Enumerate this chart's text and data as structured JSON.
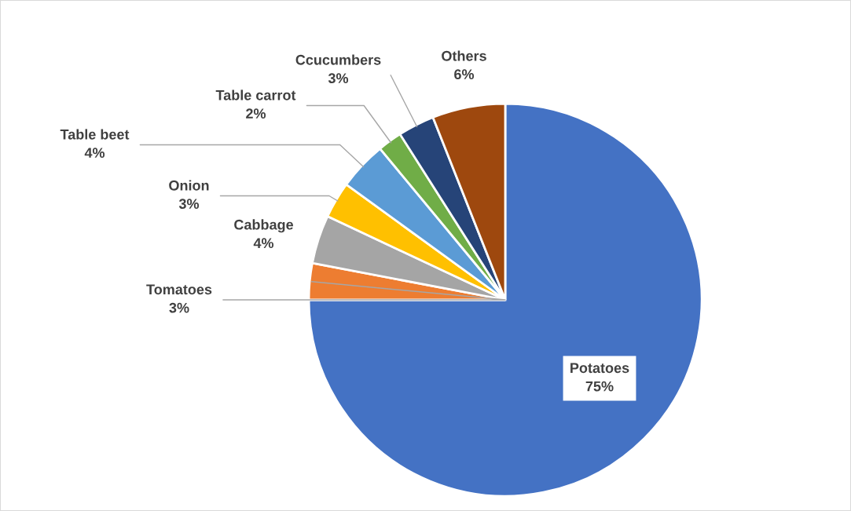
{
  "chart_data": {
    "type": "pie",
    "categories": [
      "Potatoes",
      "Tomatoes",
      "Cabbage",
      "Onion",
      "Table beet",
      "Table carrot",
      "Ccucumbers",
      "Others"
    ],
    "values": [
      75,
      3,
      4,
      3,
      4,
      2,
      3,
      6
    ],
    "colors": [
      "#4472c4",
      "#ed7d31",
      "#a5a5a5",
      "#ffc000",
      "#5b9bd5",
      "#70ad47",
      "#264478",
      "#9e480e"
    ],
    "value_labels": [
      "75%",
      "3%",
      "4%",
      "3%",
      "4%",
      "2%",
      "3%",
      "6%"
    ]
  }
}
